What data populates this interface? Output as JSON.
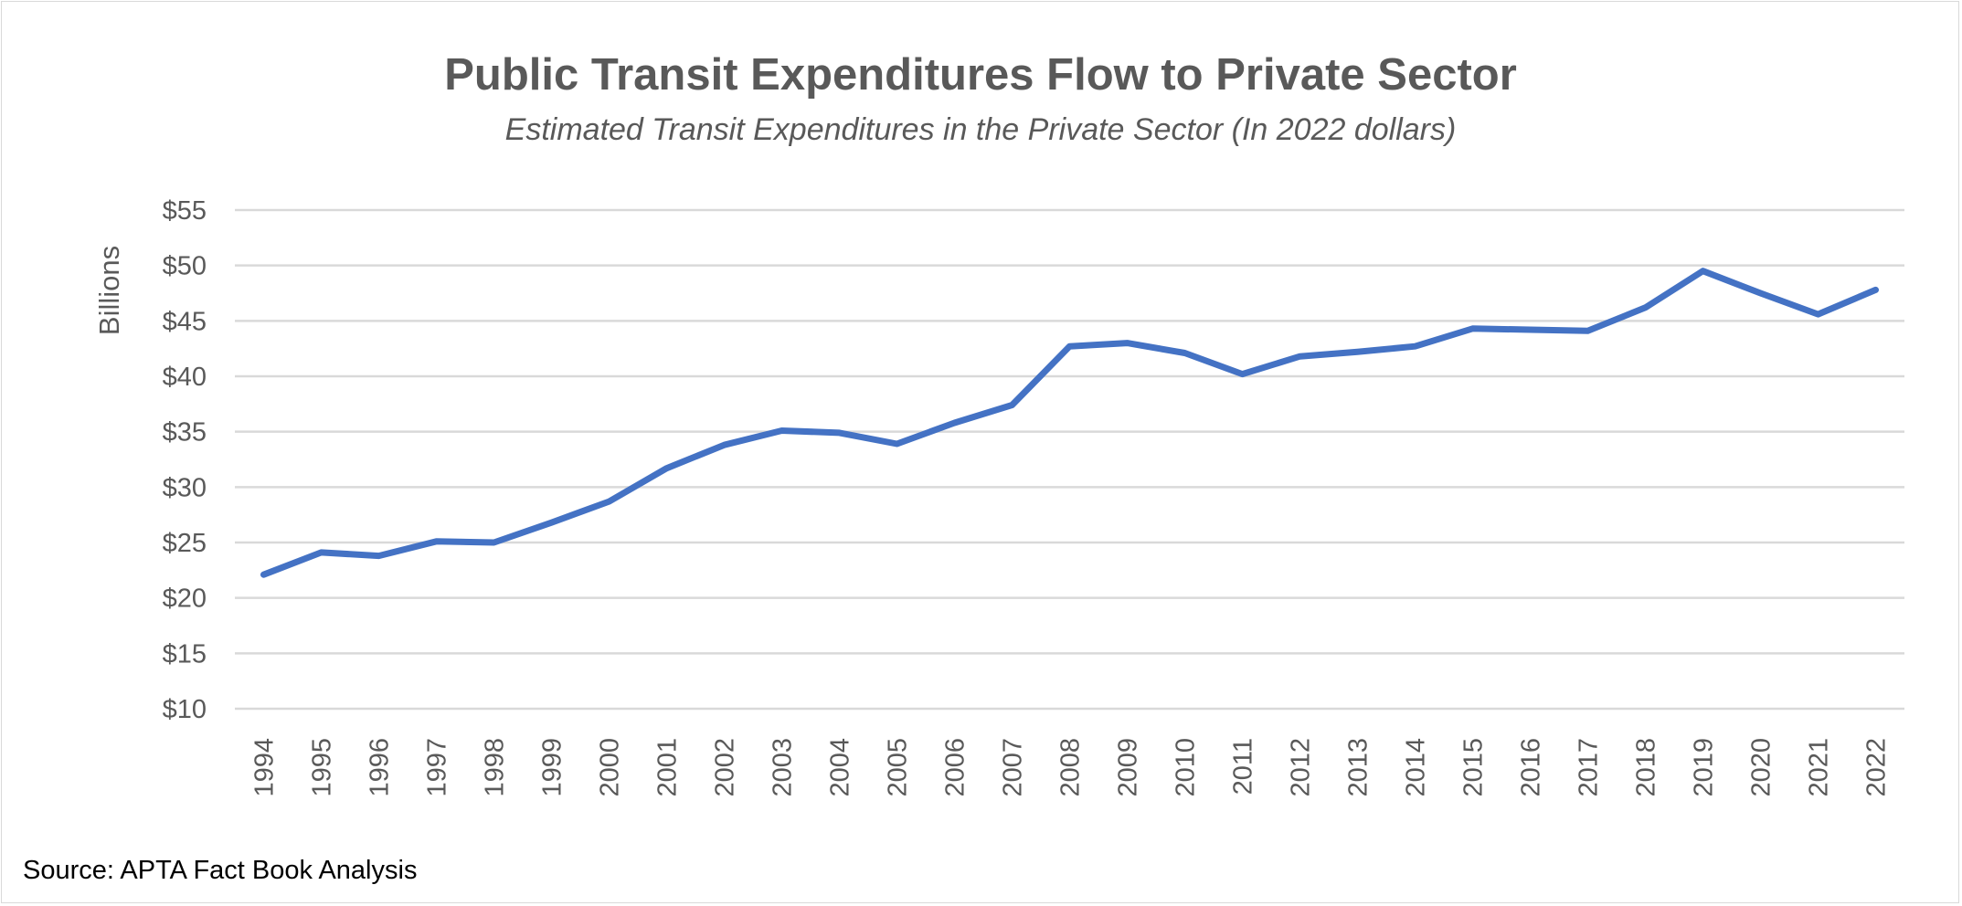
{
  "chart_data": {
    "type": "line",
    "title": "Public Transit Expenditures Flow to Private Sector",
    "subtitle": "Estimated Transit Expenditures in the Private Sector (In 2022 dollars)",
    "xlabel": "",
    "ylabel": "Billions",
    "ylim": [
      10,
      55
    ],
    "y_ticks": [
      "$10",
      "$15",
      "$20",
      "$25",
      "$30",
      "$35",
      "$40",
      "$45",
      "$50",
      "$55"
    ],
    "y_tick_values": [
      10,
      15,
      20,
      25,
      30,
      35,
      40,
      45,
      50,
      55
    ],
    "grid": true,
    "legend": "none",
    "categories": [
      "1994",
      "1995",
      "1996",
      "1997",
      "1998",
      "1999",
      "2000",
      "2001",
      "2002",
      "2003",
      "2004",
      "2005",
      "2006",
      "2007",
      "2008",
      "2009",
      "2010",
      "2011",
      "2012",
      "2013",
      "2014",
      "2015",
      "2016",
      "2017",
      "2018",
      "2019",
      "2020",
      "2021",
      "2022"
    ],
    "series": [
      {
        "values": [
          22.1,
          24.1,
          23.8,
          25.1,
          25.0,
          26.8,
          28.7,
          31.7,
          33.8,
          35.1,
          34.9,
          33.9,
          35.8,
          37.4,
          42.7,
          43.0,
          42.1,
          40.2,
          41.8,
          42.2,
          42.7,
          44.3,
          44.2,
          44.1,
          46.2,
          49.5,
          47.5,
          45.6,
          47.8
        ],
        "color": "#4472c4"
      }
    ],
    "gridline_color": "#d9d9d9",
    "source": "Source: APTA Fact Book Analysis"
  }
}
